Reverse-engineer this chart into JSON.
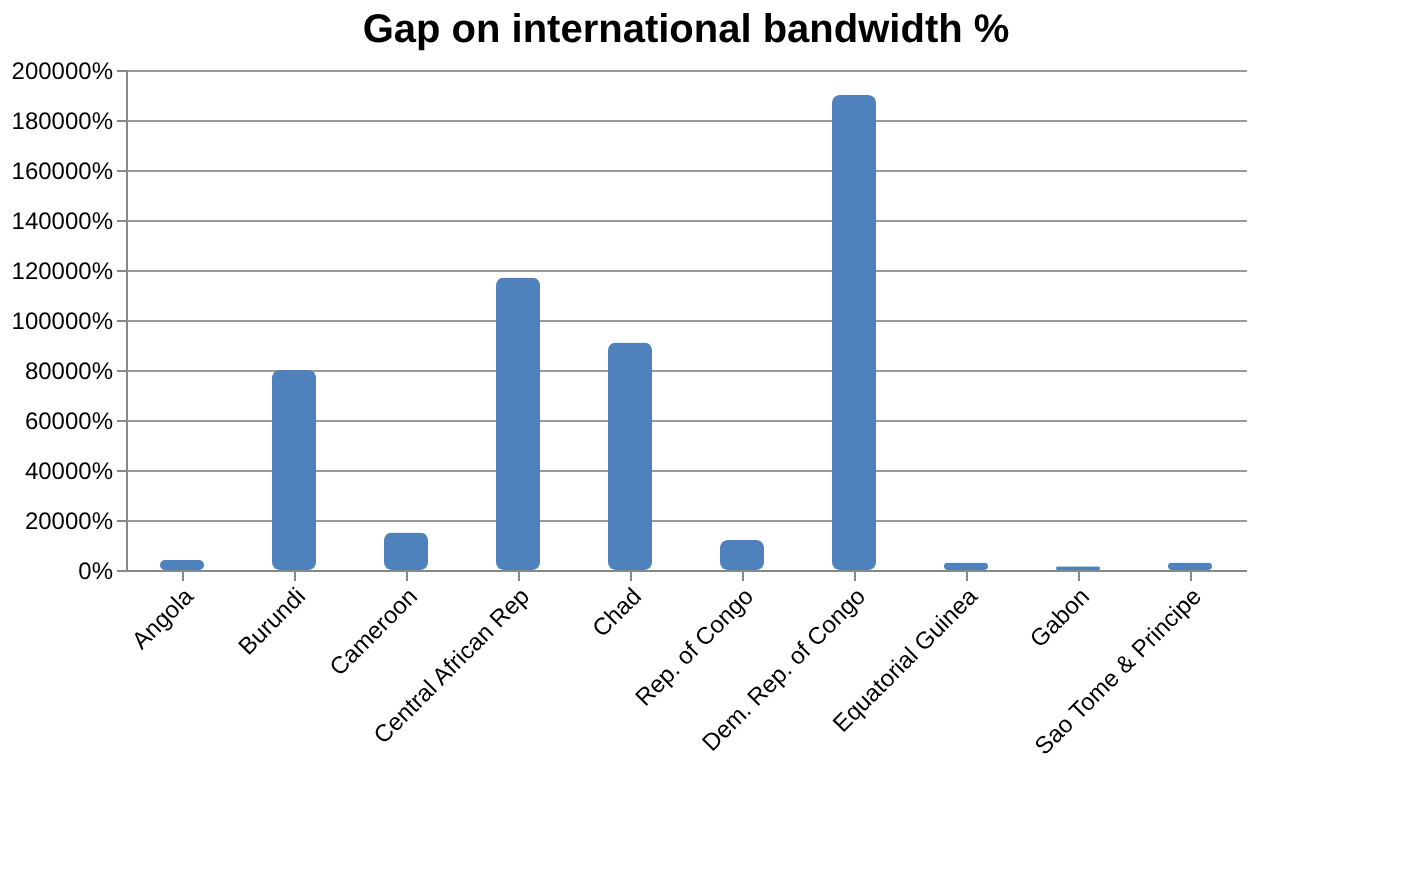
{
  "chart_data": {
    "type": "bar",
    "title": "Gap on international bandwidth %",
    "categories": [
      "Angola",
      "Burundi",
      "Cameroon",
      "Central African Rep",
      "Chad",
      "Rep. of Congo",
      "Dem. Rep. of Congo",
      "Equatorial Guinea",
      "Gabon",
      "Sao Tome & Principe"
    ],
    "values": [
      4000,
      80000,
      15000,
      117000,
      91000,
      12000,
      190000,
      3000,
      1500,
      3000
    ],
    "color": "#4f81bd",
    "ylim": [
      0,
      200000
    ],
    "yticks": [
      {
        "value": 0,
        "label": "0%"
      },
      {
        "value": 20000,
        "label": "20000%"
      },
      {
        "value": 40000,
        "label": "40000%"
      },
      {
        "value": 60000,
        "label": "60000%"
      },
      {
        "value": 80000,
        "label": "80000%"
      },
      {
        "value": 100000,
        "label": "100000%"
      },
      {
        "value": 120000,
        "label": "120000%"
      },
      {
        "value": 140000,
        "label": "140000%"
      },
      {
        "value": 160000,
        "label": "160000%"
      },
      {
        "value": 180000,
        "label": "180000%"
      },
      {
        "value": 200000,
        "label": "200000%"
      }
    ],
    "grid": "y",
    "legend": false
  }
}
